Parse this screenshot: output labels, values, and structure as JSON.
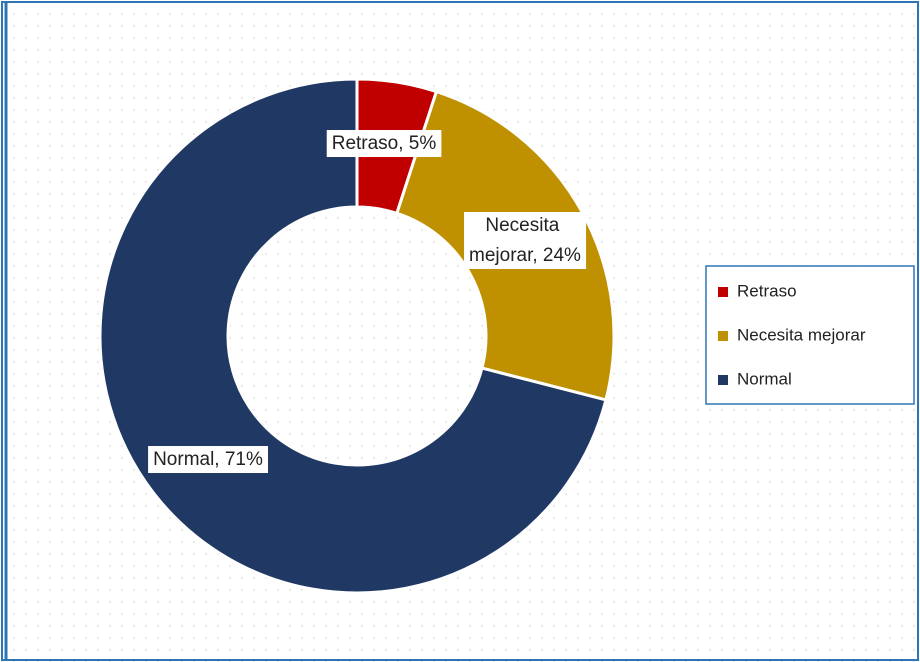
{
  "chart_data": {
    "type": "donut",
    "categories": [
      "Retraso",
      "Necesita mejorar",
      "Normal"
    ],
    "values": [
      5,
      24,
      71
    ],
    "value_labels": [
      "Retraso, 5%",
      "Necesita mejorar, 24%",
      "Normal, 71%"
    ],
    "colors": [
      "#c00000",
      "#bf9000",
      "#203864"
    ],
    "legend": "right"
  }
}
